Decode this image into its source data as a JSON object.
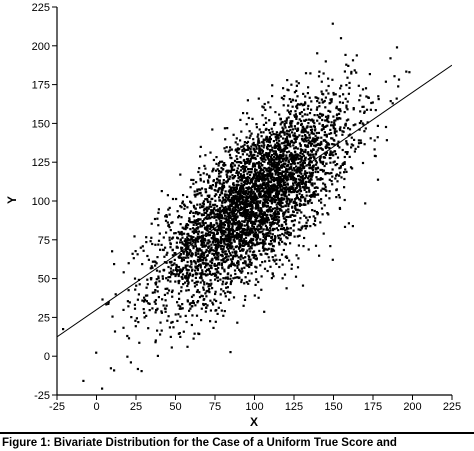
{
  "chart_data": {
    "type": "scatter",
    "xlabel": "X",
    "ylabel": "Y",
    "xlim": [
      -25,
      225
    ],
    "ylim": [
      -25,
      225
    ],
    "xticks": [
      -25,
      0,
      25,
      50,
      75,
      100,
      125,
      150,
      175,
      200,
      225
    ],
    "yticks": [
      -25,
      0,
      25,
      50,
      75,
      100,
      125,
      150,
      175,
      200,
      225
    ],
    "grid": false,
    "legend": "none",
    "marker_color": "#000000",
    "point_cloud": {
      "n": 4500,
      "center": [
        100,
        100
      ],
      "x_sd": 30,
      "y_sd": 32,
      "correlation": 0.72
    },
    "regression_line": {
      "slope": 0.7,
      "intercept": 30,
      "x_range": [
        -25,
        225
      ]
    }
  },
  "caption": "Figure 1:  Bivariate Distribution for the Case of a Uniform True Score and"
}
